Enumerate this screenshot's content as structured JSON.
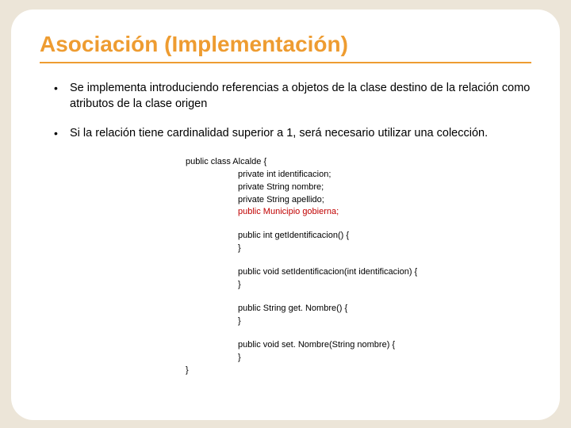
{
  "slide": {
    "title": "Asociación (Implementación)",
    "title_color": "#ee9c31",
    "title_underline_color": "#ee9c31",
    "title_fontsize": 28,
    "background_color": "#ece5d8",
    "card_background": "#ffffff",
    "card_border_radius": 28,
    "bullet_fontsize": 14.5,
    "bullets": [
      "Se implementa introduciendo referencias a objetos de la clase destino de la relación como atributos de la clase origen",
      "Si la relación tiene cardinalidad superior a 1, será necesario utilizar una colección."
    ],
    "code": {
      "fontsize": 11,
      "highlight_color": "#c00000",
      "lines": [
        {
          "text": "public class Alcalde {",
          "indent": 0,
          "highlight": false
        },
        {
          "text": "private int identificacion;",
          "indent": 1,
          "highlight": false
        },
        {
          "text": "private String nombre;",
          "indent": 1,
          "highlight": false
        },
        {
          "text": "private String apellido;",
          "indent": 1,
          "highlight": false
        },
        {
          "text": "public Municipio gobierna;",
          "indent": 1,
          "highlight": true
        },
        {
          "text": "",
          "indent": 1,
          "highlight": false
        },
        {
          "text": "public int getIdentificacion() {",
          "indent": 1,
          "highlight": false
        },
        {
          "text": "}",
          "indent": 1,
          "highlight": false
        },
        {
          "text": "",
          "indent": 1,
          "highlight": false
        },
        {
          "text": "public void setIdentificacion(int identificacion) {",
          "indent": 1,
          "highlight": false
        },
        {
          "text": "}",
          "indent": 1,
          "highlight": false
        },
        {
          "text": "",
          "indent": 1,
          "highlight": false
        },
        {
          "text": "public String get. Nombre() {",
          "indent": 1,
          "highlight": false
        },
        {
          "text": "}",
          "indent": 1,
          "highlight": false
        },
        {
          "text": "",
          "indent": 1,
          "highlight": false
        },
        {
          "text": "public void set. Nombre(String nombre) {",
          "indent": 1,
          "highlight": false
        },
        {
          "text": "}",
          "indent": 1,
          "highlight": false
        },
        {
          "text": "}",
          "indent": 0,
          "highlight": false
        }
      ]
    }
  }
}
